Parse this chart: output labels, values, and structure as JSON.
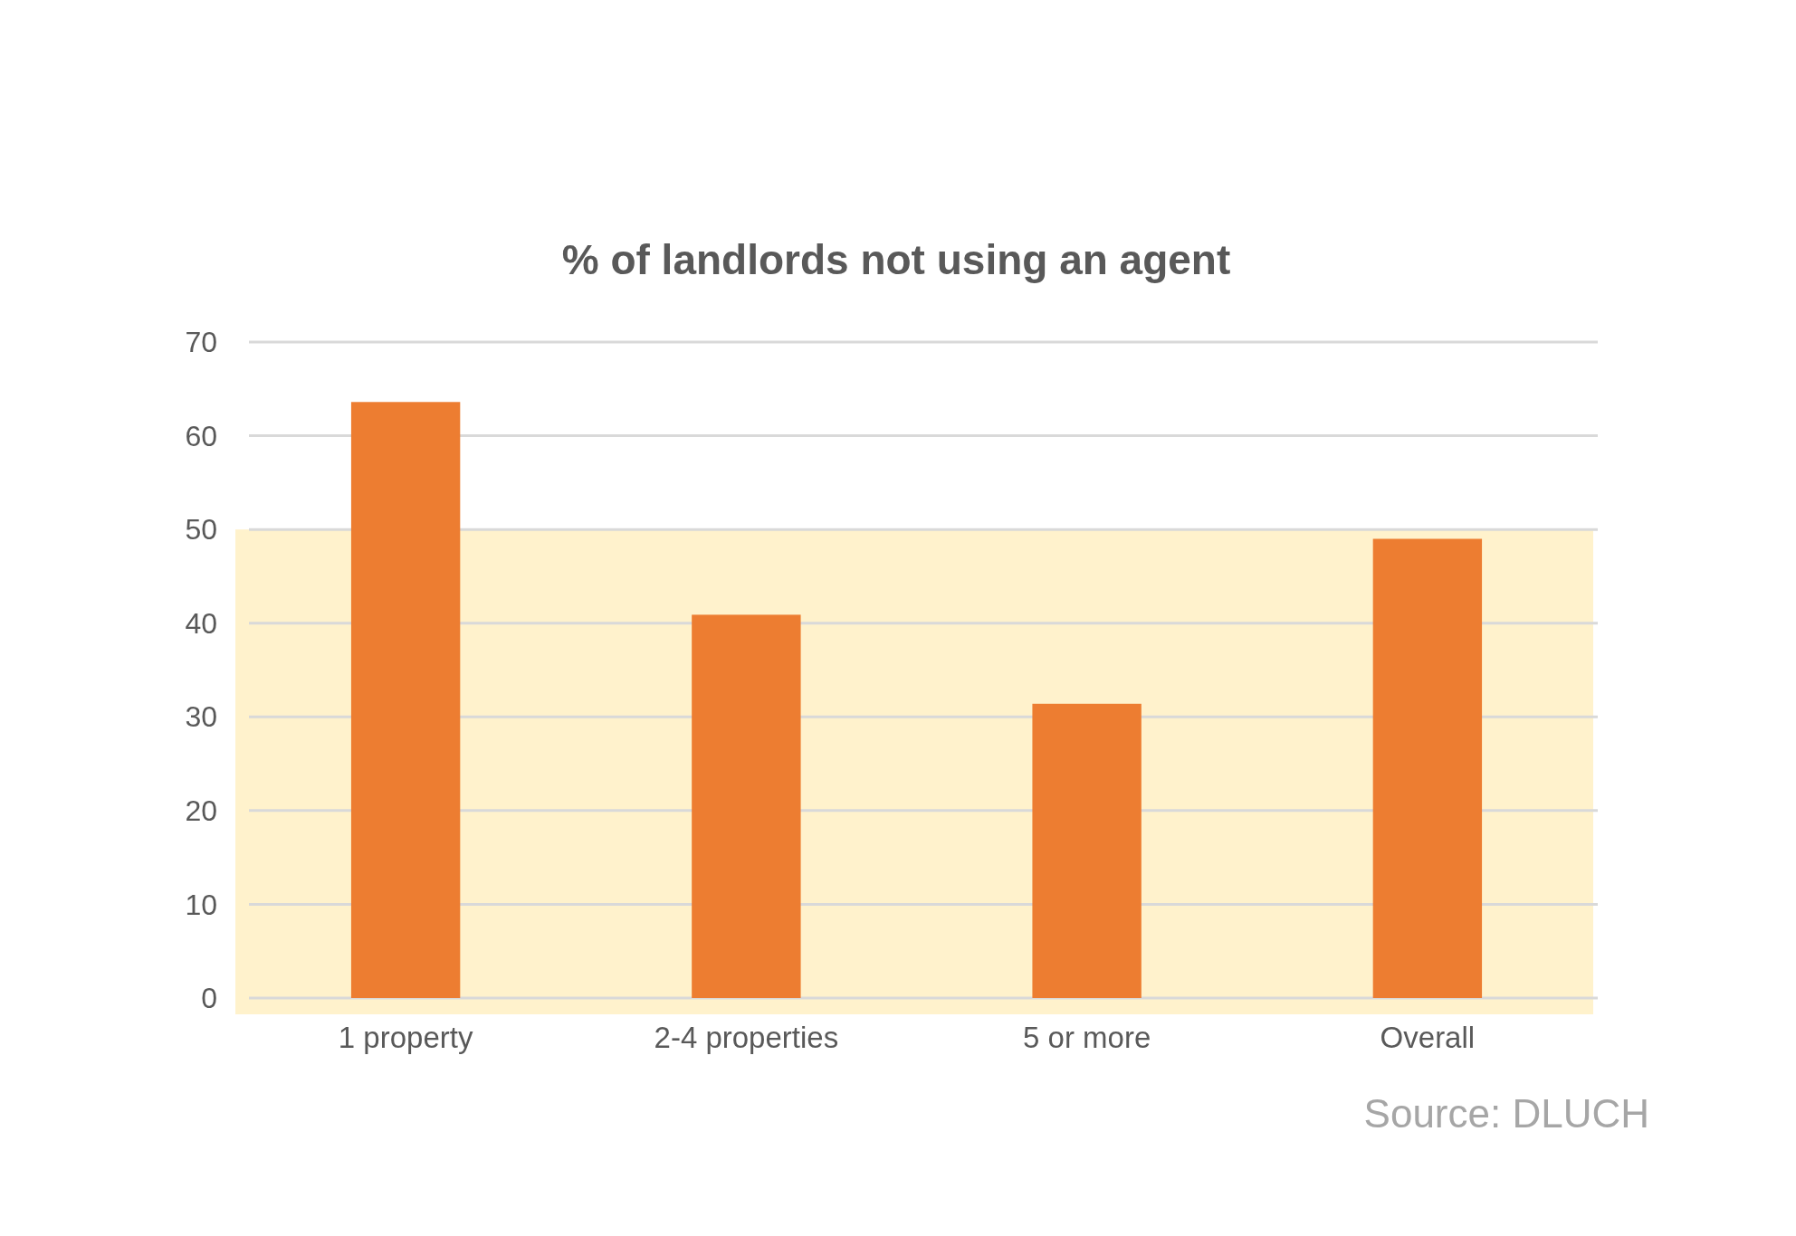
{
  "chart_data": {
    "type": "bar",
    "title": "% of landlords not using an agent",
    "categories": [
      "1 property",
      "2-4 properties",
      "5 or more",
      "Overall"
    ],
    "values": [
      63.6,
      40.9,
      31.4,
      49.0
    ],
    "color": "#ed7d31",
    "ylim": [
      0,
      70
    ],
    "yticks": [
      0,
      10,
      20,
      30,
      40,
      50,
      60,
      70
    ],
    "grid": "y",
    "bands": [
      {
        "axis": "y",
        "from": 0,
        "to": 50,
        "color": "#fff2cc"
      }
    ],
    "annotations": [
      "Source: DLUCH"
    ]
  }
}
